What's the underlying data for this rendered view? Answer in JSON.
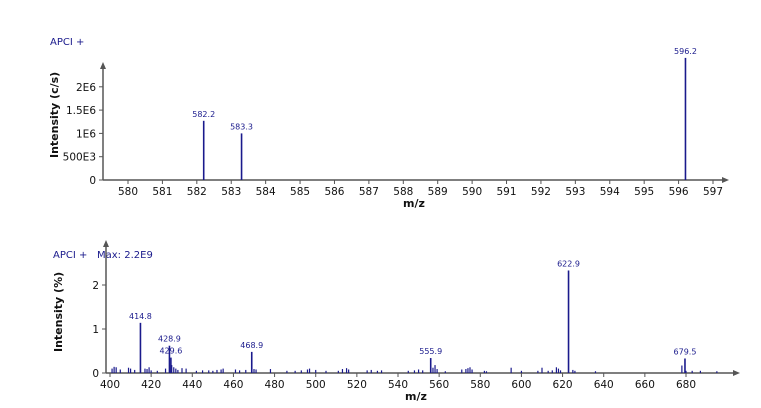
{
  "colors": {
    "peak": "#1a1a8c",
    "axis": "#555555",
    "text": "#111111"
  },
  "chart_data": [
    {
      "type": "bar",
      "title": "APCI +",
      "xlabel": "m/z",
      "ylabel": "Intensity (c/s)",
      "xlim": [
        579.3,
        597.3
      ],
      "ylim": [
        0,
        2700000.0
      ],
      "x_ticks": [
        580,
        581,
        582,
        583,
        584,
        585,
        586,
        587,
        588,
        589,
        590,
        591,
        592,
        593,
        594,
        595,
        596,
        597
      ],
      "y_ticks": [
        {
          "v": 0,
          "label": "0"
        },
        {
          "v": 500000,
          "label": "500E3"
        },
        {
          "v": 1000000,
          "label": "1E6"
        },
        {
          "v": 1500000,
          "label": "1.5E6"
        },
        {
          "v": 2000000,
          "label": "2E6"
        }
      ],
      "peaks": [
        {
          "x": 582.2,
          "y": 1270000,
          "label": "582.2"
        },
        {
          "x": 583.3,
          "y": 1000000,
          "label": "583.3"
        },
        {
          "x": 596.2,
          "y": 2620000,
          "label": "596.2"
        }
      ]
    },
    {
      "type": "bar",
      "title": "APCI +",
      "subtitle": "Max: 2.2E9",
      "xlabel": "m/z",
      "ylabel": "Intensity (%)",
      "xlim": [
        398,
        700
      ],
      "ylim": [
        0,
        2.7
      ],
      "x_ticks": [
        400,
        420,
        440,
        460,
        480,
        500,
        520,
        540,
        560,
        580,
        600,
        620,
        640,
        660,
        680
      ],
      "y_ticks": [
        {
          "v": 0,
          "label": "0"
        },
        {
          "v": 1,
          "label": "1"
        },
        {
          "v": 2,
          "label": "2"
        }
      ],
      "peaks": [
        {
          "x": 414.8,
          "y": 1.14,
          "label": "414.8"
        },
        {
          "x": 428.9,
          "y": 0.62,
          "label": "428.9"
        },
        {
          "x": 429.6,
          "y": 0.35,
          "label": "429.6"
        },
        {
          "x": 468.9,
          "y": 0.48,
          "label": "468.9"
        },
        {
          "x": 555.9,
          "y": 0.34,
          "label": "555.9"
        },
        {
          "x": 622.9,
          "y": 2.33,
          "label": "622.9"
        },
        {
          "x": 679.5,
          "y": 0.33,
          "label": "679.5"
        }
      ],
      "minor_peaks": [
        [
          401,
          0.1
        ],
        [
          402,
          0.14
        ],
        [
          403,
          0.13
        ],
        [
          405,
          0.08
        ],
        [
          409,
          0.12
        ],
        [
          410,
          0.1
        ],
        [
          412,
          0.07
        ],
        [
          417,
          0.1
        ],
        [
          418,
          0.09
        ],
        [
          419,
          0.13
        ],
        [
          420,
          0.06
        ],
        [
          423,
          0.05
        ],
        [
          427,
          0.1
        ],
        [
          430,
          0.18
        ],
        [
          431,
          0.13
        ],
        [
          432,
          0.1
        ],
        [
          433,
          0.07
        ],
        [
          435,
          0.11
        ],
        [
          437,
          0.1
        ],
        [
          442,
          0.05
        ],
        [
          445,
          0.06
        ],
        [
          448,
          0.06
        ],
        [
          450,
          0.05
        ],
        [
          452,
          0.07
        ],
        [
          454,
          0.08
        ],
        [
          455,
          0.1
        ],
        [
          461,
          0.08
        ],
        [
          463,
          0.06
        ],
        [
          466,
          0.07
        ],
        [
          470,
          0.09
        ],
        [
          471,
          0.08
        ],
        [
          478,
          0.09
        ],
        [
          486,
          0.05
        ],
        [
          490,
          0.05
        ],
        [
          493,
          0.06
        ],
        [
          496,
          0.08
        ],
        [
          497,
          0.1
        ],
        [
          500,
          0.07
        ],
        [
          505,
          0.05
        ],
        [
          511,
          0.05
        ],
        [
          513,
          0.09
        ],
        [
          515,
          0.11
        ],
        [
          516,
          0.08
        ],
        [
          525,
          0.06
        ],
        [
          527,
          0.07
        ],
        [
          530,
          0.05
        ],
        [
          532,
          0.06
        ],
        [
          545,
          0.05
        ],
        [
          548,
          0.06
        ],
        [
          550,
          0.08
        ],
        [
          552,
          0.06
        ],
        [
          556,
          0.16
        ],
        [
          557,
          0.12
        ],
        [
          558,
          0.18
        ],
        [
          559,
          0.09
        ],
        [
          563,
          0.04
        ],
        [
          571,
          0.08
        ],
        [
          573,
          0.09
        ],
        [
          574,
          0.11
        ],
        [
          575,
          0.13
        ],
        [
          576,
          0.08
        ],
        [
          582,
          0.05
        ],
        [
          583,
          0.04
        ],
        [
          595,
          0.12
        ],
        [
          600,
          0.05
        ],
        [
          608,
          0.05
        ],
        [
          610,
          0.12
        ],
        [
          613,
          0.05
        ],
        [
          615,
          0.06
        ],
        [
          617,
          0.13
        ],
        [
          618,
          0.1
        ],
        [
          619,
          0.06
        ],
        [
          625,
          0.07
        ],
        [
          626,
          0.05
        ],
        [
          636,
          0.04
        ],
        [
          678,
          0.17
        ],
        [
          680,
          0.05
        ],
        [
          683,
          0.05
        ],
        [
          687,
          0.05
        ],
        [
          695,
          0.04
        ]
      ]
    }
  ]
}
